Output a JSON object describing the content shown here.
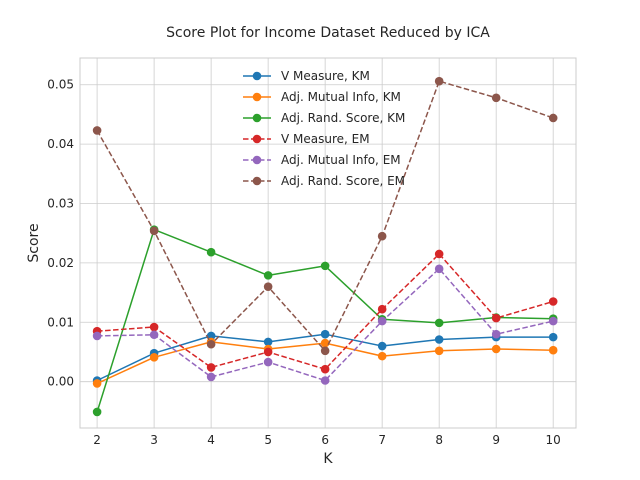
{
  "chart_data": {
    "type": "line",
    "title": "Score Plot for Income Dataset Reduced by ICA",
    "xlabel": "K",
    "ylabel": "Score",
    "x": [
      2,
      3,
      4,
      5,
      6,
      7,
      8,
      9,
      10
    ],
    "xlim": [
      1.7,
      10.4
    ],
    "ylim": [
      -0.0078,
      0.0545
    ],
    "yticks": [
      0.0,
      0.01,
      0.02,
      0.03,
      0.04,
      0.05
    ],
    "ytick_labels": [
      "0.00",
      "0.01",
      "0.02",
      "0.03",
      "0.04",
      "0.05"
    ],
    "grid": true,
    "legend_position": "top-center",
    "series": [
      {
        "name": "V Measure, KM",
        "color": "#1f77b4",
        "dash": false,
        "values": [
          0.0002,
          0.0048,
          0.0077,
          0.0067,
          0.008,
          0.006,
          0.0071,
          0.0075,
          0.0075
        ]
      },
      {
        "name": "Adj. Mutual Info, KM",
        "color": "#ff7f0e",
        "dash": false,
        "values": [
          -0.0003,
          0.0041,
          0.0067,
          0.0055,
          0.0065,
          0.0043,
          0.0052,
          0.0055,
          0.0053
        ]
      },
      {
        "name": "Adj. Rand. Score, KM",
        "color": "#2ca02c",
        "dash": false,
        "values": [
          -0.0051,
          0.0256,
          0.0218,
          0.0179,
          0.0195,
          0.0105,
          0.0099,
          0.0108,
          0.0106
        ]
      },
      {
        "name": "V Measure, EM",
        "color": "#d62728",
        "dash": true,
        "values": [
          0.0085,
          0.0092,
          0.0024,
          0.005,
          0.0021,
          0.0122,
          0.0215,
          0.0107,
          0.0135
        ]
      },
      {
        "name": "Adj. Mutual Info, EM",
        "color": "#9467bd",
        "dash": true,
        "values": [
          0.0077,
          0.0079,
          0.0008,
          0.0033,
          0.0002,
          0.0102,
          0.019,
          0.008,
          0.0102
        ]
      },
      {
        "name": "Adj. Rand. Score, EM",
        "color": "#8c564b",
        "dash": true,
        "values": [
          0.0423,
          0.0254,
          0.0063,
          0.016,
          0.0052,
          0.0245,
          0.0506,
          0.0478,
          0.0444
        ]
      }
    ]
  }
}
